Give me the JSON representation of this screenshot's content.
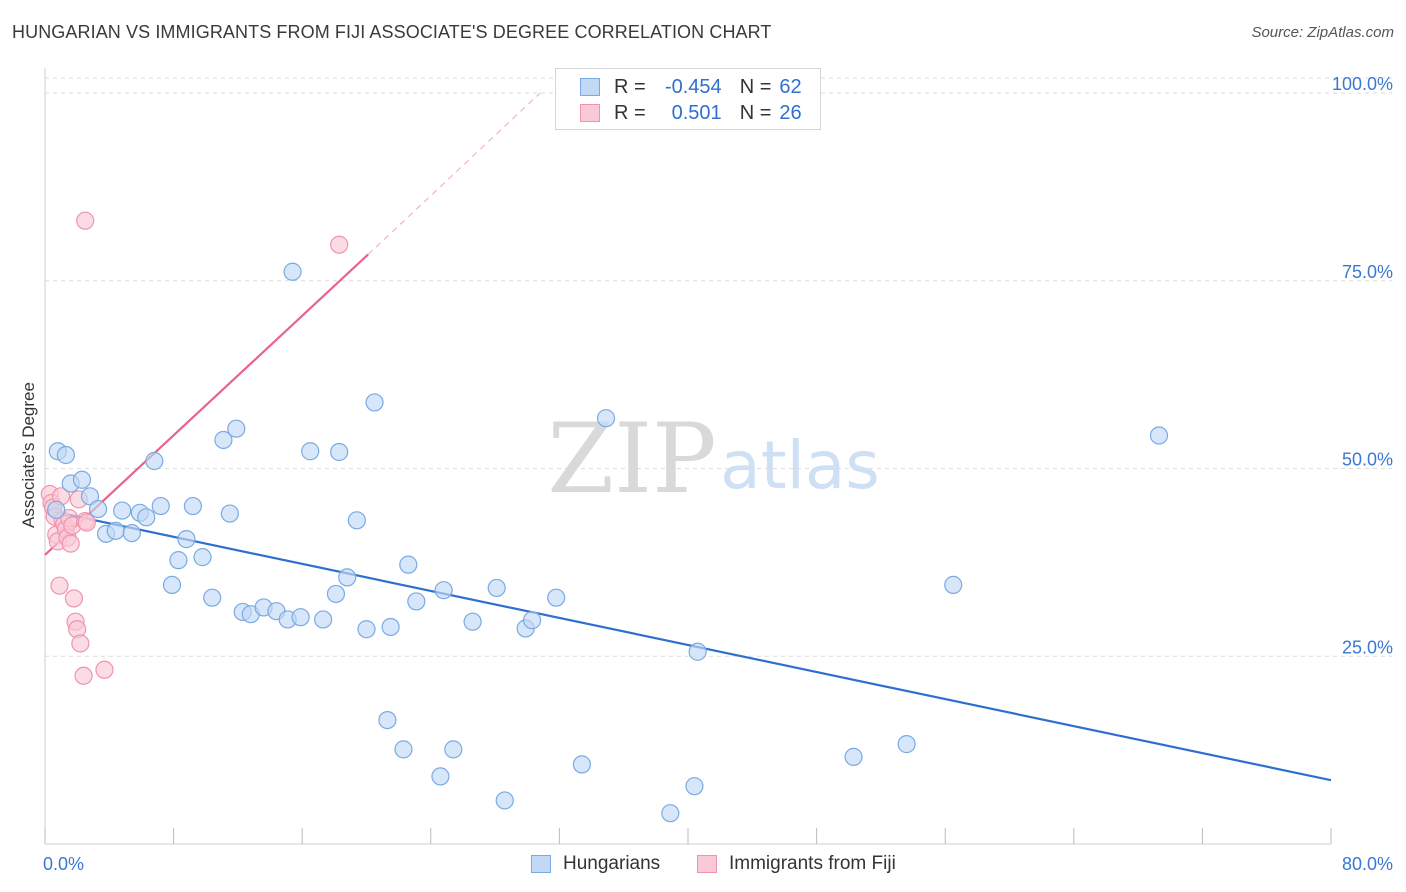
{
  "title": "HUNGARIAN VS IMMIGRANTS FROM FIJI ASSOCIATE'S DEGREE CORRELATION CHART",
  "source": "Source: ZipAtlas.com",
  "watermark": {
    "zip": "ZIP",
    "atlas": "atlas"
  },
  "stats": {
    "row1": {
      "r_label": "R =",
      "r_value": "-0.454",
      "n_label": "N =",
      "n_value": "62"
    },
    "row2": {
      "r_label": "R =",
      "r_value": "0.501",
      "n_label": "N =",
      "n_value": "26"
    }
  },
  "legend": {
    "hungarians": "Hungarians",
    "fiji": "Immigrants from Fiji"
  },
  "colors": {
    "hungarians_fill": "#c2d9f5",
    "hungarians_stroke": "#7aaae4",
    "hungarians_line": "#2f6fd0",
    "fiji_fill": "#f9c9d6",
    "fiji_stroke": "#ef94ae",
    "fiji_line": "#e8628a",
    "tick_label": "#3a78d4"
  },
  "chart_data": {
    "type": "scatter",
    "title": "HUNGARIAN VS IMMIGRANTS FROM FIJI ASSOCIATE'S DEGREE CORRELATION CHART",
    "xlabel": "",
    "ylabel": "Associate's Degree",
    "xlim": [
      0,
      80
    ],
    "ylim": [
      0,
      102
    ],
    "x_tick_labels": [
      "0.0%",
      "80.0%"
    ],
    "y_ticks": [
      25,
      50,
      75,
      100
    ],
    "y_tick_labels": [
      "25.0%",
      "50.0%",
      "75.0%",
      "100.0%"
    ],
    "grid": true,
    "legend_position": "bottom-center",
    "series": [
      {
        "name": "Hungarians",
        "r": -0.454,
        "n": 62,
        "trend": {
          "x": [
            0,
            80
          ],
          "y": [
            44.5,
            8.5
          ]
        },
        "points": [
          [
            0.8,
            52.3
          ],
          [
            1.3,
            51.8
          ],
          [
            0.7,
            44.5
          ],
          [
            1.6,
            48.0
          ],
          [
            2.3,
            48.5
          ],
          [
            2.8,
            46.3
          ],
          [
            3.3,
            44.6
          ],
          [
            3.8,
            41.3
          ],
          [
            4.4,
            41.7
          ],
          [
            4.8,
            44.4
          ],
          [
            5.4,
            41.4
          ],
          [
            5.9,
            44.1
          ],
          [
            6.3,
            43.5
          ],
          [
            6.8,
            51.0
          ],
          [
            7.2,
            45.0
          ],
          [
            7.9,
            34.5
          ],
          [
            8.3,
            37.8
          ],
          [
            8.8,
            40.6
          ],
          [
            9.2,
            45.0
          ],
          [
            9.8,
            38.2
          ],
          [
            10.4,
            32.8
          ],
          [
            11.1,
            53.8
          ],
          [
            11.5,
            44.0
          ],
          [
            11.9,
            55.3
          ],
          [
            12.3,
            30.9
          ],
          [
            12.8,
            30.6
          ],
          [
            13.6,
            31.5
          ],
          [
            14.4,
            31.0
          ],
          [
            15.1,
            29.9
          ],
          [
            15.4,
            76.2
          ],
          [
            15.9,
            30.2
          ],
          [
            16.5,
            52.3
          ],
          [
            17.3,
            29.9
          ],
          [
            18.1,
            33.3
          ],
          [
            18.3,
            52.2
          ],
          [
            18.8,
            35.5
          ],
          [
            19.4,
            43.1
          ],
          [
            20.0,
            28.6
          ],
          [
            20.5,
            58.8
          ],
          [
            21.3,
            16.5
          ],
          [
            21.5,
            28.9
          ],
          [
            22.3,
            12.6
          ],
          [
            22.6,
            37.2
          ],
          [
            23.1,
            32.3
          ],
          [
            24.6,
            9.0
          ],
          [
            24.8,
            33.8
          ],
          [
            25.4,
            12.6
          ],
          [
            26.6,
            29.6
          ],
          [
            28.1,
            34.1
          ],
          [
            28.6,
            5.8
          ],
          [
            29.9,
            28.7
          ],
          [
            30.3,
            29.8
          ],
          [
            31.8,
            32.8
          ],
          [
            33.4,
            10.6
          ],
          [
            34.9,
            56.7
          ],
          [
            38.9,
            4.1
          ],
          [
            40.4,
            7.7
          ],
          [
            40.6,
            25.6
          ],
          [
            50.3,
            11.6
          ],
          [
            53.6,
            13.3
          ],
          [
            56.5,
            34.5
          ],
          [
            69.3,
            54.4
          ]
        ]
      },
      {
        "name": "Immigrants from Fiji",
        "r": 0.501,
        "n": 26,
        "trend": {
          "x": [
            0,
            20.1
          ],
          "y": [
            38.5,
            78.5
          ]
        },
        "trend_extension": {
          "x": [
            20.1,
            30.8
          ],
          "y": [
            78.5,
            100
          ]
        },
        "points": [
          [
            0.3,
            46.6
          ],
          [
            0.4,
            45.4
          ],
          [
            0.5,
            44.8
          ],
          [
            0.6,
            43.6
          ],
          [
            0.7,
            41.2
          ],
          [
            0.8,
            40.3
          ],
          [
            0.9,
            34.4
          ],
          [
            1.0,
            46.3
          ],
          [
            1.1,
            43.1
          ],
          [
            1.2,
            42.6
          ],
          [
            1.3,
            41.9
          ],
          [
            1.4,
            40.8
          ],
          [
            1.5,
            43.4
          ],
          [
            1.6,
            40.0
          ],
          [
            1.7,
            42.4
          ],
          [
            1.8,
            32.7
          ],
          [
            1.9,
            29.6
          ],
          [
            2.0,
            28.6
          ],
          [
            2.1,
            45.9
          ],
          [
            2.2,
            26.7
          ],
          [
            2.4,
            22.4
          ],
          [
            2.5,
            43.0
          ],
          [
            2.6,
            42.8
          ],
          [
            2.5,
            83.0
          ],
          [
            3.7,
            23.2
          ],
          [
            18.3,
            79.8
          ]
        ]
      }
    ]
  }
}
